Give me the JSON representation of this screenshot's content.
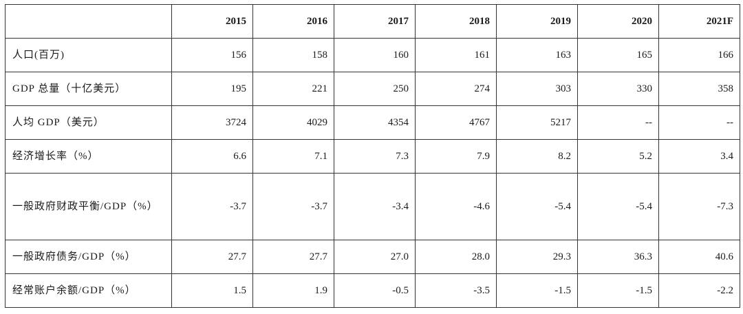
{
  "table": {
    "columns": [
      "",
      "2015",
      "2016",
      "2017",
      "2018",
      "2019",
      "2020",
      "2021F"
    ],
    "rows": [
      {
        "label": "人口(百万)",
        "values": [
          "156",
          "158",
          "160",
          "161",
          "163",
          "165",
          "166"
        ]
      },
      {
        "label": "GDP 总量（十亿美元）",
        "values": [
          "195",
          "221",
          "250",
          "274",
          "303",
          "330",
          "358"
        ]
      },
      {
        "label": "人均 GDP（美元）",
        "values": [
          "3724",
          "4029",
          "4354",
          "4767",
          "5217",
          "--",
          "--"
        ]
      },
      {
        "label": "经济增长率（%）",
        "values": [
          "6.6",
          "7.1",
          "7.3",
          "7.9",
          "8.2",
          "5.2",
          "3.4"
        ]
      },
      {
        "label": "一般政府财政平衡/GDP（%）",
        "values": [
          "-3.7",
          "-3.7",
          "-3.4",
          "-4.6",
          "-5.4",
          "-5.4",
          "-7.3"
        ]
      },
      {
        "label": "一般政府债务/GDP（%）",
        "values": [
          "27.7",
          "27.7",
          "27.0",
          "28.0",
          "29.3",
          "36.3",
          "40.6"
        ]
      },
      {
        "label": "经常账户余额/GDP（%）",
        "values": [
          "1.5",
          "1.9",
          "-0.5",
          "-3.5",
          "-1.5",
          "-1.5",
          "-2.2"
        ]
      }
    ]
  }
}
